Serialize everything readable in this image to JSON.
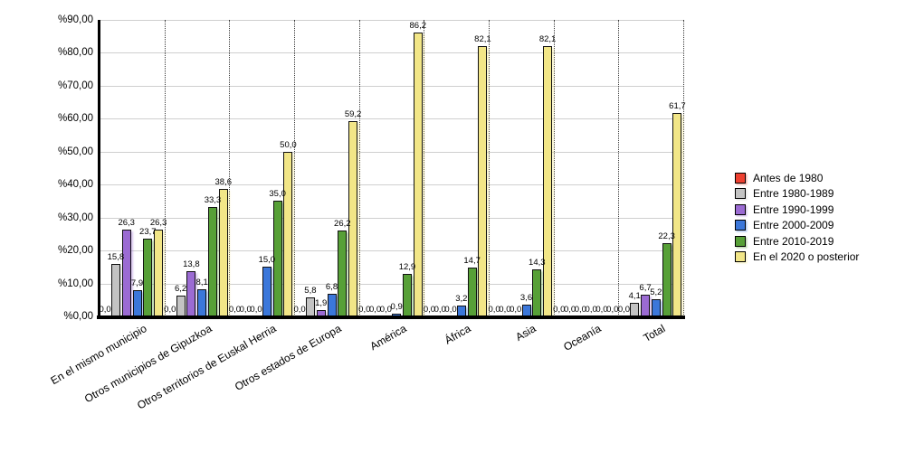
{
  "chart_data": {
    "type": "bar",
    "title": "",
    "xlabel": "",
    "ylabel": "",
    "ylim": [
      0,
      90
    ],
    "grid": "horizontal-solid-plus-vertical-dotted-group-separators",
    "legend_position": "right",
    "value_label_decimal_separator": ",",
    "y_ticks": [
      "%0,00",
      "%10,00",
      "%20,00",
      "%30,00",
      "%40,00",
      "%50,00",
      "%60,00",
      "%70,00",
      "%80,00",
      "%90,00"
    ],
    "categories": [
      "En el mismo municipio",
      "Otros municipios de Gipuzkoa",
      "Otros territorios de Euskal Herria",
      "Otros estados de Europa",
      "América",
      "África",
      "Asia",
      "Oceanía",
      "Total"
    ],
    "series": [
      {
        "name": "Antes de 1980",
        "color": "#ee4030",
        "values": [
          0.0,
          0.0,
          0.0,
          0.0,
          0.0,
          0.0,
          0.0,
          0.0,
          0.0
        ]
      },
      {
        "name": "Entre 1980-1989",
        "color": "#c3c3c3",
        "values": [
          15.8,
          6.2,
          0.0,
          5.8,
          0.0,
          0.0,
          0.0,
          0.0,
          4.1
        ]
      },
      {
        "name": "Entre 1990-1999",
        "color": "#9b6bd3",
        "values": [
          26.3,
          13.8,
          0.0,
          1.9,
          0.0,
          0.0,
          0.0,
          0.0,
          6.7
        ]
      },
      {
        "name": "Entre 2000-2009",
        "color": "#3b77da",
        "values": [
          7.9,
          8.1,
          15.0,
          6.8,
          0.9,
          3.2,
          3.6,
          0.0,
          5.2
        ]
      },
      {
        "name": "Entre 2010-2019",
        "color": "#57a037",
        "values": [
          23.7,
          33.3,
          35.0,
          26.2,
          12.9,
          14.7,
          14.3,
          0.0,
          22.3
        ]
      },
      {
        "name": "En el 2020 o posterior",
        "color": "#f2e687",
        "values": [
          26.3,
          38.6,
          50.0,
          59.2,
          86.2,
          82.1,
          82.1,
          0.0,
          61.7
        ]
      }
    ]
  },
  "colors": {
    "background": "#ffffff",
    "axis": "#000000",
    "gridline": "#cfcfcf",
    "separator": "#3a3a3a",
    "text": "#000000"
  }
}
